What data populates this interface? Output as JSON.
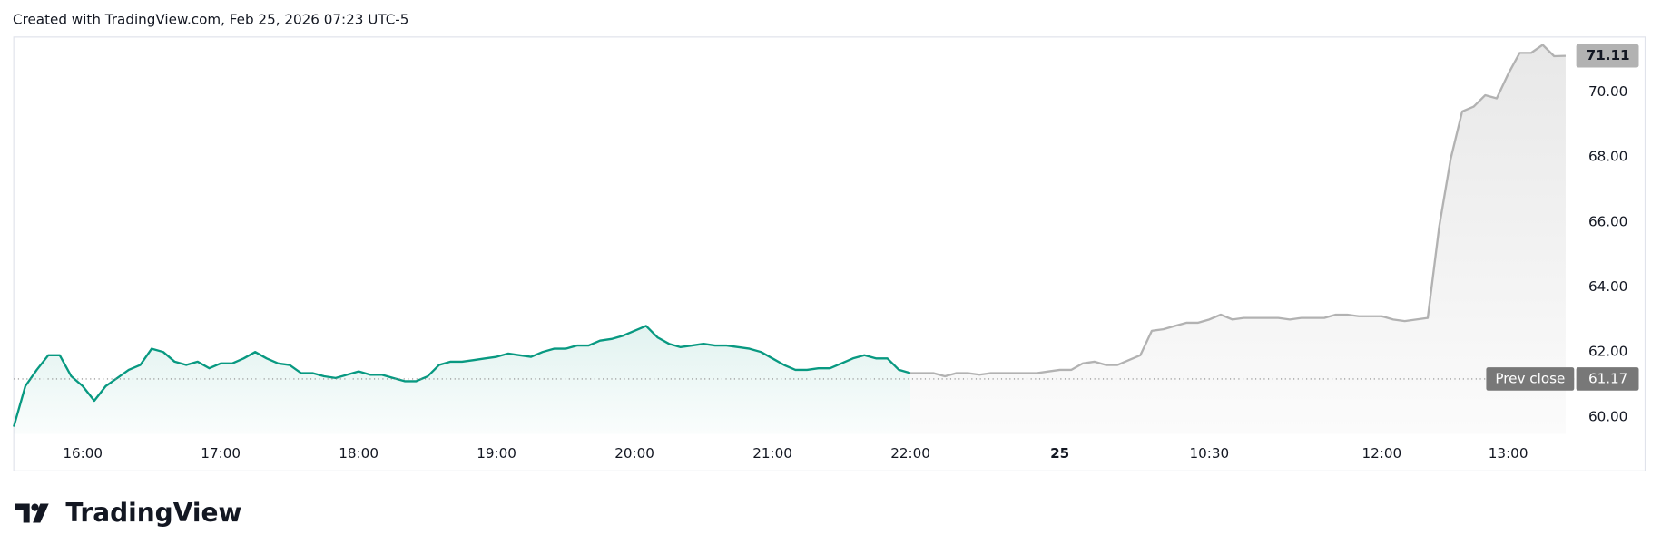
{
  "header": "Created with TradingView.com, Feb 25, 2026 07:23 UTC-5",
  "brand": "TradingView",
  "chart_data": {
    "type": "line",
    "categories": [
      null,
      null,
      null,
      null,
      null,
      null,
      "16:00",
      null,
      null,
      null,
      null,
      null,
      null,
      null,
      null,
      null,
      null,
      null,
      "17:00",
      null,
      null,
      null,
      null,
      null,
      null,
      null,
      null,
      null,
      null,
      null,
      "18:00",
      null,
      null,
      null,
      null,
      null,
      null,
      null,
      null,
      null,
      null,
      null,
      "19:00",
      null,
      null,
      null,
      null,
      null,
      null,
      null,
      null,
      null,
      null,
      null,
      "20:00",
      null,
      null,
      null,
      null,
      null,
      null,
      null,
      null,
      null,
      null,
      null,
      "21:00",
      null,
      null,
      null,
      null,
      null,
      null,
      null,
      null,
      null,
      null,
      null,
      "22:00",
      null,
      null,
      null,
      null,
      null,
      null,
      null,
      null,
      null,
      null,
      null,
      null,
      "25",
      null,
      null,
      null,
      null,
      null,
      null,
      null,
      null,
      null,
      null,
      null,
      null,
      "10:30",
      null,
      null,
      null,
      null,
      null,
      null,
      null,
      null,
      null,
      null,
      null,
      null,
      null,
      null,
      "12:00",
      null,
      null,
      null,
      null,
      null,
      null,
      null,
      null,
      null,
      null,
      "13:00",
      null,
      null,
      null,
      null,
      null
    ],
    "series": [
      {
        "color": "#089981",
        "values": [
          59.7,
          60.95,
          61.45,
          61.9,
          61.9,
          61.25,
          60.95,
          60.5,
          60.95,
          61.2,
          61.45,
          61.6,
          62.1,
          62.0,
          61.7,
          61.6,
          61.7,
          61.5,
          61.65,
          61.65,
          61.8,
          62.0,
          61.8,
          61.65,
          61.6,
          61.35,
          61.35,
          61.25,
          61.2,
          61.3,
          61.4,
          61.3,
          61.3,
          61.2,
          61.1,
          61.1,
          61.25,
          61.6,
          61.7,
          61.7,
          61.75,
          61.8,
          61.85,
          61.95,
          61.9,
          61.85,
          62.0,
          62.1,
          62.1,
          62.2,
          62.2,
          62.35,
          62.4,
          62.5,
          62.65,
          62.8,
          62.45,
          62.25,
          62.15,
          62.2,
          62.25,
          62.2,
          62.2,
          62.15,
          62.1,
          62.0,
          61.8,
          61.6,
          61.45,
          61.45,
          61.5,
          61.5,
          61.65,
          61.8,
          61.9,
          61.8,
          61.8,
          61.45,
          61.35,
          null,
          null,
          null,
          null,
          null,
          null,
          null,
          null,
          null,
          null,
          null,
          null,
          null,
          null,
          null,
          null,
          null,
          null,
          null,
          null,
          null,
          null,
          null,
          null,
          null,
          null,
          null,
          null,
          null,
          null,
          null,
          null,
          null,
          null,
          null,
          null,
          null,
          null,
          null,
          null,
          null,
          null,
          null,
          null,
          null,
          null,
          null,
          null,
          null,
          null,
          null,
          null,
          null,
          null,
          null,
          null,
          null
        ]
      },
      {
        "color": "#b2b2b2",
        "values": [
          null,
          null,
          null,
          null,
          null,
          null,
          null,
          null,
          null,
          null,
          null,
          null,
          null,
          null,
          null,
          null,
          null,
          null,
          null,
          null,
          null,
          null,
          null,
          null,
          null,
          null,
          null,
          null,
          null,
          null,
          null,
          null,
          null,
          null,
          null,
          null,
          null,
          null,
          null,
          null,
          null,
          null,
          null,
          null,
          null,
          null,
          null,
          null,
          null,
          null,
          null,
          null,
          null,
          null,
          null,
          null,
          null,
          null,
          null,
          null,
          null,
          null,
          null,
          null,
          null,
          null,
          null,
          null,
          null,
          null,
          null,
          null,
          null,
          null,
          null,
          null,
          null,
          null,
          61.35,
          61.35,
          61.35,
          61.25,
          61.35,
          61.35,
          61.3,
          61.35,
          61.35,
          61.35,
          61.35,
          61.35,
          61.4,
          61.45,
          61.45,
          61.65,
          61.7,
          61.6,
          61.6,
          61.75,
          61.9,
          62.65,
          62.7,
          62.8,
          62.9,
          62.9,
          63.0,
          63.15,
          63.0,
          63.05,
          63.05,
          63.05,
          63.05,
          63.0,
          63.05,
          63.05,
          63.05,
          63.15,
          63.15,
          63.1,
          63.1,
          63.1,
          63.0,
          62.95,
          63.0,
          63.05,
          65.85,
          67.95,
          69.4,
          69.55,
          69.9,
          69.8,
          70.55,
          71.2,
          71.2,
          71.45,
          71.1,
          71.11
        ]
      }
    ],
    "ylim": [
      59.48,
      71.69
    ],
    "yticks": [
      {
        "value": 60,
        "label": "60.00"
      },
      {
        "value": 62,
        "label": "62.00"
      },
      {
        "value": 64,
        "label": "64.00"
      },
      {
        "value": 66,
        "label": "66.00"
      },
      {
        "value": 68,
        "label": "68.00"
      },
      {
        "value": 70,
        "label": "70.00"
      }
    ],
    "prev_close": {
      "label": "Prev close",
      "value": 61.17
    }
  }
}
